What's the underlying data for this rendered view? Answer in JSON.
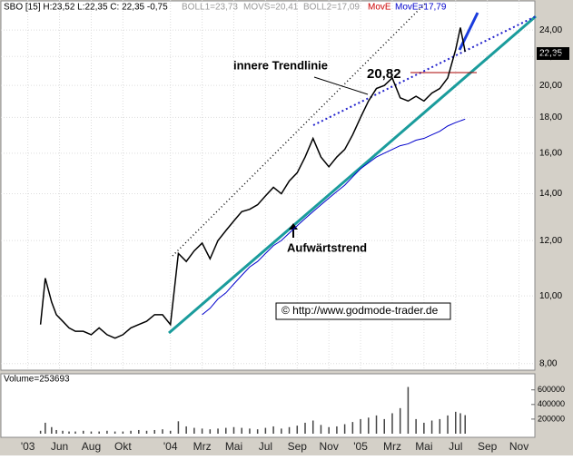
{
  "chart_data": {
    "type": "line",
    "header": "SBO [15] H:23,52 L:22,35 C: 22,35 -0,75",
    "indicators": [
      "BOLL1=23,73",
      "MOVS=20,41",
      "BOLL2=17,09",
      "MovE",
      "MovE=17,79"
    ],
    "annotations": [
      "innere Trendlinie",
      "20,82",
      "Aufwärtstrend",
      "© http://www.godmode-trader.de"
    ],
    "last_price_label": "22,35",
    "log_y": true,
    "x": [
      3.8,
      4.1,
      4.5,
      4.8,
      5.2,
      5.6,
      6,
      6.5,
      7,
      7.5,
      8,
      8.5,
      9,
      9.5,
      10,
      10.5,
      11,
      11.5,
      12,
      12.5,
      13,
      13.5,
      14,
      14.5,
      15,
      15.5,
      16,
      16.5,
      17,
      17.5,
      18,
      18.5,
      19,
      19.5,
      20,
      20.5,
      21,
      21.5,
      22,
      22.5,
      23,
      23.5,
      24,
      24.5,
      25,
      25.5,
      26,
      26.5,
      27,
      27.5,
      28,
      28.5,
      29,
      29.5,
      30,
      30.3,
      30.6
    ],
    "series": [
      {
        "color": "#000000",
        "values": [
          9.1,
          10.6,
          9.8,
          9.4,
          9.2,
          9.0,
          8.9,
          8.9,
          8.8,
          9.0,
          8.8,
          8.7,
          8.8,
          9.0,
          9.1,
          9.2,
          9.4,
          9.4,
          9.1,
          11.5,
          11.2,
          11.6,
          11.9,
          11.3,
          12.0,
          12.4,
          12.8,
          13.2,
          13.3,
          13.5,
          13.9,
          14.3,
          14.0,
          14.6,
          15.0,
          15.8,
          16.8,
          15.8,
          15.3,
          15.8,
          16.2,
          17.0,
          18.0,
          19.0,
          19.8,
          20.0,
          20.5,
          19.2,
          19.0,
          19.3,
          19.0,
          19.5,
          19.8,
          20.5,
          22.5,
          24.2,
          22.35
        ]
      },
      {
        "color": "#0000cc",
        "values": [
          null,
          null,
          null,
          null,
          null,
          null,
          null,
          null,
          null,
          null,
          null,
          null,
          null,
          null,
          null,
          null,
          null,
          null,
          null,
          null,
          null,
          null,
          9.4,
          9.6,
          9.9,
          10.1,
          10.4,
          10.7,
          11.0,
          11.2,
          11.5,
          11.8,
          12.0,
          12.3,
          12.6,
          12.9,
          13.2,
          13.5,
          13.8,
          14.1,
          14.4,
          14.8,
          15.2,
          15.5,
          15.8,
          16.0,
          16.2,
          16.4,
          16.5,
          16.7,
          16.8,
          17.0,
          17.2,
          17.5,
          17.7,
          17.8,
          17.9
        ]
      }
    ],
    "volume_label": "Volume=253693",
    "volume": [
      40000,
      150000,
      90000,
      50000,
      40000,
      30000,
      30000,
      40000,
      30000,
      30000,
      40000,
      30000,
      30000,
      40000,
      50000,
      40000,
      50000,
      60000,
      40000,
      170000,
      100000,
      80000,
      70000,
      60000,
      70000,
      80000,
      90000,
      80000,
      70000,
      60000,
      80000,
      100000,
      70000,
      90000,
      110000,
      150000,
      180000,
      120000,
      90000,
      100000,
      130000,
      160000,
      200000,
      220000,
      250000,
      200000,
      280000,
      350000,
      640000,
      200000,
      150000,
      180000,
      200000,
      250000,
      300000,
      280000,
      253693
    ],
    "vol_ylim": [
      0,
      820000
    ],
    "vol_yticks": [
      200000,
      400000,
      600000
    ],
    "ylim": [
      7.83,
      26.5
    ],
    "yticks": [
      {
        "value": 8,
        "label": "8,00"
      },
      {
        "value": 10,
        "label": "10,00"
      },
      {
        "value": 12,
        "label": "12,00"
      },
      {
        "value": 14,
        "label": "14,00"
      },
      {
        "value": 16,
        "label": "16,00"
      },
      {
        "value": 18,
        "label": "18,00"
      },
      {
        "value": 20,
        "label": "20,00"
      },
      {
        "value": 22,
        "label": "22,00"
      },
      {
        "value": 24,
        "label": "24,00"
      }
    ],
    "xlim": [
      1.3,
      35.0
    ],
    "xticks": [
      {
        "value": 3,
        "label": "'03"
      },
      {
        "value": 5,
        "label": "Jun"
      },
      {
        "value": 7,
        "label": "Aug"
      },
      {
        "value": 9,
        "label": "Okt"
      },
      {
        "value": 12,
        "label": "'04"
      },
      {
        "value": 14,
        "label": "Mrz"
      },
      {
        "value": 16,
        "label": "Mai"
      },
      {
        "value": 18,
        "label": "Jul"
      },
      {
        "value": 20,
        "label": "Sep"
      },
      {
        "value": 22,
        "label": "Nov"
      },
      {
        "value": 24,
        "label": "'05"
      },
      {
        "value": 26,
        "label": "Mrz"
      },
      {
        "value": 28,
        "label": "Mai"
      },
      {
        "value": 30,
        "label": "Jul"
      },
      {
        "value": 32,
        "label": "Sep"
      },
      {
        "value": 34,
        "label": "Nov"
      }
    ]
  }
}
